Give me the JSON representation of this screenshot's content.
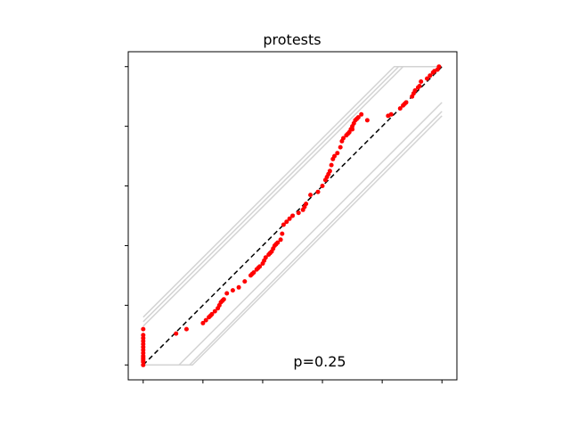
{
  "chart_data": {
    "type": "scatter",
    "title": "protests",
    "annotation": "p=0.25",
    "xlabel": "",
    "ylabel": "",
    "xlim": [
      -0.05,
      1.05
    ],
    "ylim": [
      -0.05,
      1.05
    ],
    "x_ticks": [
      0.0,
      0.2,
      0.4,
      0.6,
      0.8,
      1.0
    ],
    "y_ticks": [
      0.0,
      0.2,
      0.4,
      0.6,
      0.8,
      1.0
    ],
    "show_tick_labels": false,
    "grid": false,
    "reference_line": {
      "style": "dashed",
      "color": "#000000",
      "from": [
        0,
        0
      ],
      "to": [
        1,
        1
      ]
    },
    "envelope_color": "#d3d3d3",
    "envelope_bands": [
      [
        [
          0.0,
          0.16
        ],
        [
          0.84,
          1.0
        ],
        [
          1.0,
          1.0
        ]
      ],
      [
        [
          0.0,
          0.145
        ],
        [
          0.855,
          1.0
        ],
        [
          1.0,
          1.0
        ]
      ],
      [
        [
          0.0,
          0.13
        ],
        [
          0.87,
          1.0
        ],
        [
          1.0,
          1.0
        ]
      ],
      [
        [
          0.0,
          0.0
        ],
        [
          0.165,
          0.0
        ],
        [
          1.0,
          0.835
        ]
      ],
      [
        [
          0.0,
          0.0
        ],
        [
          0.155,
          0.0
        ],
        [
          1.0,
          0.85
        ]
      ],
      [
        [
          0.0,
          0.0
        ],
        [
          0.12,
          0.0
        ],
        [
          1.0,
          0.88
        ]
      ]
    ],
    "point_color": "#ff0000",
    "points": {
      "x": [
        0.0,
        0.0,
        0.0,
        0.0,
        0.0,
        0.0,
        0.0,
        0.0,
        0.0,
        0.0,
        0.0,
        0.0,
        0.0,
        0.0,
        0.11,
        0.145,
        0.2,
        0.21,
        0.22,
        0.225,
        0.23,
        0.24,
        0.25,
        0.255,
        0.26,
        0.265,
        0.27,
        0.28,
        0.3,
        0.32,
        0.34,
        0.36,
        0.365,
        0.37,
        0.38,
        0.385,
        0.39,
        0.4,
        0.405,
        0.41,
        0.42,
        0.425,
        0.43,
        0.435,
        0.44,
        0.445,
        0.45,
        0.46,
        0.465,
        0.47,
        0.48,
        0.49,
        0.5,
        0.52,
        0.535,
        0.54,
        0.545,
        0.56,
        0.585,
        0.6,
        0.61,
        0.615,
        0.62,
        0.625,
        0.63,
        0.635,
        0.64,
        0.65,
        0.66,
        0.665,
        0.67,
        0.68,
        0.685,
        0.69,
        0.695,
        0.7,
        0.705,
        0.71,
        0.715,
        0.72,
        0.7,
        0.73,
        0.75,
        0.82,
        0.83,
        0.86,
        0.87,
        0.875,
        0.88,
        0.9,
        0.905,
        0.91,
        0.92,
        0.925,
        0.93,
        0.95,
        0.96,
        0.97,
        0.975,
        0.985,
        0.99
      ],
      "y": [
        0.0,
        0.01,
        0.015,
        0.02,
        0.025,
        0.03,
        0.04,
        0.05,
        0.06,
        0.07,
        0.08,
        0.09,
        0.1,
        0.12,
        0.105,
        0.12,
        0.14,
        0.15,
        0.16,
        0.165,
        0.17,
        0.18,
        0.19,
        0.2,
        0.21,
        0.215,
        0.22,
        0.24,
        0.25,
        0.26,
        0.28,
        0.3,
        0.305,
        0.31,
        0.32,
        0.325,
        0.33,
        0.34,
        0.35,
        0.36,
        0.37,
        0.375,
        0.38,
        0.39,
        0.4,
        0.405,
        0.41,
        0.42,
        0.44,
        0.47,
        0.48,
        0.49,
        0.5,
        0.51,
        0.52,
        0.53,
        0.54,
        0.57,
        0.58,
        0.6,
        0.62,
        0.63,
        0.64,
        0.65,
        0.67,
        0.69,
        0.7,
        0.71,
        0.73,
        0.75,
        0.76,
        0.77,
        0.775,
        0.78,
        0.79,
        0.8,
        0.81,
        0.82,
        0.825,
        0.83,
        0.79,
        0.84,
        0.82,
        0.835,
        0.84,
        0.86,
        0.87,
        0.875,
        0.88,
        0.9,
        0.91,
        0.92,
        0.93,
        0.935,
        0.95,
        0.96,
        0.97,
        0.98,
        0.985,
        0.99,
        1.0
      ]
    }
  }
}
